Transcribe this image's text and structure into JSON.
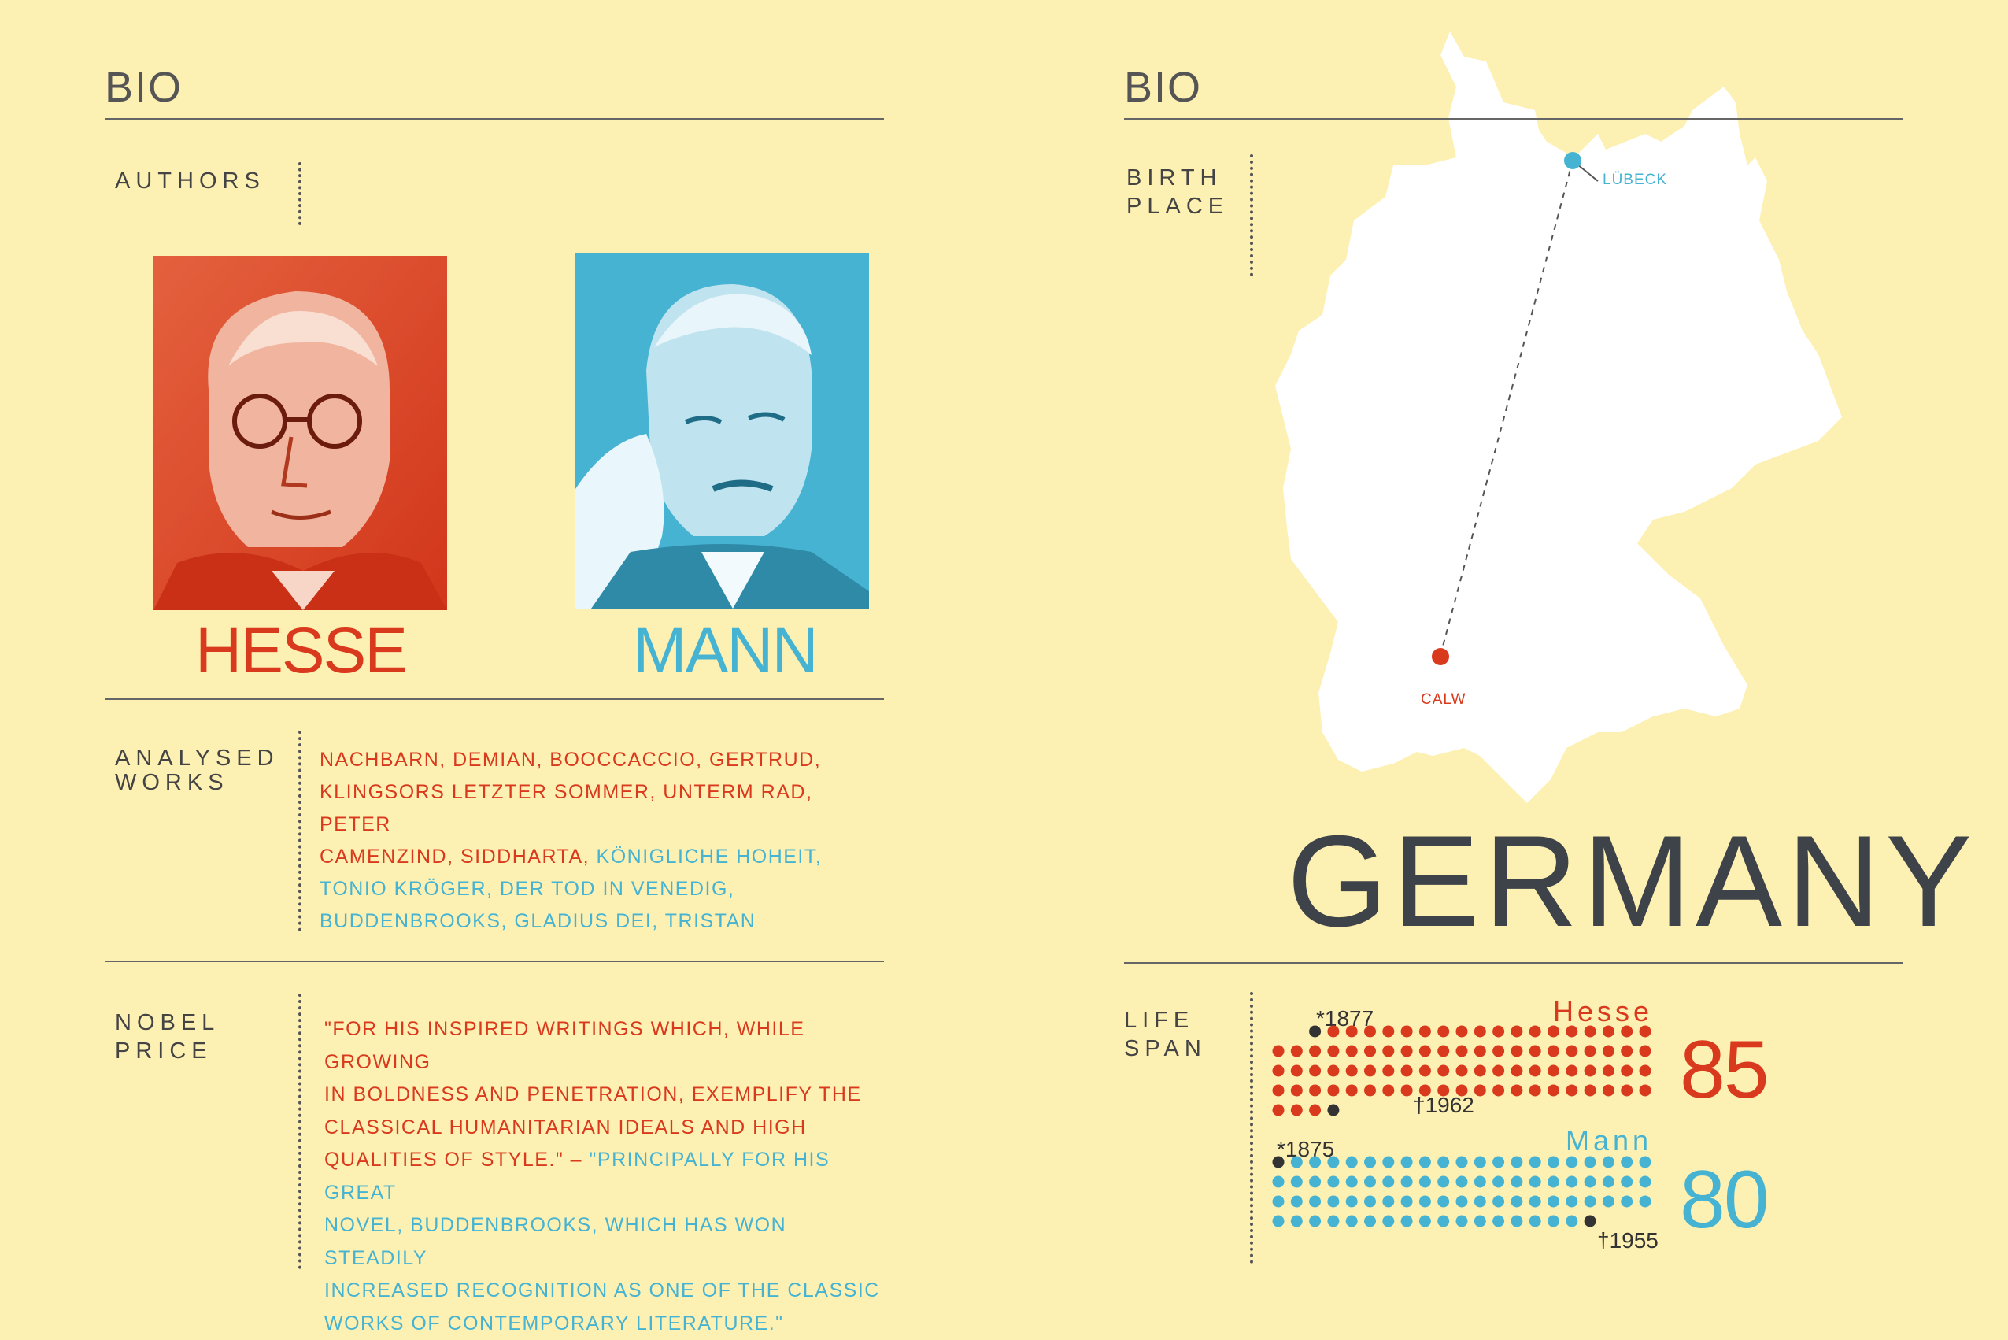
{
  "left": {
    "heading": "BIO",
    "authors_label": "AUTHORS",
    "hesse_name": "HESSE",
    "mann_name": "MANN",
    "analysed_label_line1": "ANALYSED",
    "analysed_label_line2": "WORKS",
    "works": {
      "line1": "NACHBARN, DEMIAN, BOOCCACCIO, GERTRUD,",
      "line2": "KLINGSORS LETZTER SOMMER, UNTERM RAD, PETER",
      "line3_red": "CAMENZIND, SIDDHARTA, ",
      "line3_blue": "KÖNIGLICHE HOHEIT,",
      "line4": "TONIO KRÖGER, DER TOD IN VENEDIG,",
      "line5": "BUDDENBROOKS, GLADIUS DEI, TRISTAN"
    },
    "nobel_label_line1": "NOBEL",
    "nobel_label_line2": "PRICE",
    "nobel": {
      "line1": "\"FOR HIS INSPIRED WRITINGS WHICH, WHILE GROWING",
      "line2": "IN BOLDNESS AND PENETRATION, EXEMPLIFY THE",
      "line3": "CLASSICAL HUMANITARIAN IDEALS AND HIGH",
      "line4_red": "QUALITIES OF STYLE.\" – ",
      "line4_blue": "\"PRINCIPALLY FOR HIS GREAT",
      "line5": "NOVEL, BUDDENBROOKS, WHICH HAS WON STEADILY",
      "line6": "INCREASED RECOGNITION AS ONE OF THE CLASSIC",
      "line7": "WORKS OF CONTEMPORARY LITERATURE.\""
    }
  },
  "right": {
    "heading": "BIO",
    "birth_label_line1": "BIRTH",
    "birth_label_line2": "PLACE",
    "city_lubeck": "LÜBECK",
    "city_calw": "CALW",
    "country": "GERMANY",
    "lifespan_label_line1": "LIFE",
    "lifespan_label_line2": "SPAN",
    "hesse": {
      "name": "Hesse",
      "born": "*1877",
      "died": "†1962",
      "age": "85",
      "years": 85
    },
    "mann": {
      "name": "Mann",
      "born": "*1875",
      "died": "†1955",
      "age": "80",
      "years": 80
    }
  },
  "colors": {
    "background": "#fdf0b3",
    "red": "#d93a1e",
    "blue": "#46b3d2",
    "dark": "#3d4349"
  }
}
